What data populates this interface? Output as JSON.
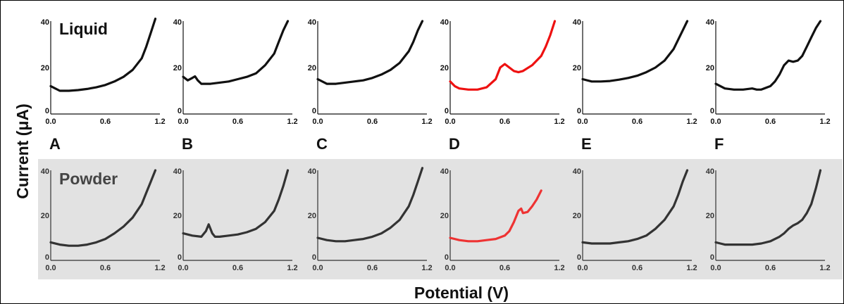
{
  "figure": {
    "ylabel": "Current (μA)",
    "xlabel": "Potential (V)",
    "row_labels": [
      "Liquid",
      "Powder"
    ],
    "panel_letters": [
      "A",
      "B",
      "C",
      "D",
      "E",
      "F"
    ]
  },
  "colors": {
    "normal": "#111111",
    "highlight": "#ee1111",
    "powder_band": "#e2e2e2"
  },
  "chart_data": [
    {
      "type": "line",
      "row": "Liquid",
      "col": "A",
      "xlim": [
        0,
        1.2
      ],
      "ylim": [
        0,
        40
      ],
      "xticks": [
        "0.0",
        "0.6",
        "1.2"
      ],
      "yticks": [
        "0",
        "20",
        "40"
      ],
      "color": "#111111",
      "x": [
        0,
        0.1,
        0.2,
        0.3,
        0.4,
        0.5,
        0.6,
        0.7,
        0.8,
        0.9,
        1.0,
        1.05,
        1.1,
        1.15
      ],
      "y": [
        12,
        10,
        10,
        10.3,
        10.8,
        11.5,
        12.5,
        14,
        16,
        19,
        24,
        29,
        35,
        41
      ]
    },
    {
      "type": "line",
      "row": "Liquid",
      "col": "B",
      "xlim": [
        0,
        1.2
      ],
      "ylim": [
        0,
        40
      ],
      "xticks": [
        "0.0",
        "0.6",
        "1.2"
      ],
      "yticks": [
        "0",
        "20",
        "40"
      ],
      "color": "#111111",
      "x": [
        0,
        0.05,
        0.1,
        0.13,
        0.16,
        0.2,
        0.3,
        0.4,
        0.5,
        0.6,
        0.7,
        0.8,
        0.9,
        1.0,
        1.05,
        1.1,
        1.15
      ],
      "y": [
        16,
        14.5,
        15.5,
        16.2,
        14.5,
        13,
        13,
        13.5,
        14,
        15,
        16,
        17.5,
        21,
        26,
        31,
        36,
        40
      ]
    },
    {
      "type": "line",
      "row": "Liquid",
      "col": "C",
      "xlim": [
        0,
        1.2
      ],
      "ylim": [
        0,
        40
      ],
      "xticks": [
        "0.0",
        "0.6",
        "1.2"
      ],
      "yticks": [
        "0",
        "20",
        "40"
      ],
      "color": "#111111",
      "x": [
        0,
        0.1,
        0.2,
        0.3,
        0.4,
        0.5,
        0.6,
        0.7,
        0.8,
        0.9,
        1.0,
        1.05,
        1.1,
        1.15
      ],
      "y": [
        15,
        13,
        13,
        13.5,
        14,
        14.5,
        15.5,
        17,
        19,
        22,
        27,
        31,
        36,
        40
      ]
    },
    {
      "type": "line",
      "row": "Liquid",
      "col": "D",
      "xlim": [
        0,
        1.2
      ],
      "ylim": [
        0,
        40
      ],
      "xticks": [
        "0.0",
        "0.6",
        "1.2"
      ],
      "yticks": [
        "0",
        "20",
        "40"
      ],
      "color": "#ee1111",
      "x": [
        0,
        0.05,
        0.1,
        0.2,
        0.3,
        0.4,
        0.5,
        0.55,
        0.6,
        0.65,
        0.7,
        0.75,
        0.8,
        0.9,
        1.0,
        1.05,
        1.1,
        1.15
      ],
      "y": [
        14,
        12,
        11,
        10.5,
        10.5,
        11.5,
        15,
        20,
        21.5,
        20,
        18.5,
        18,
        18.5,
        21,
        25,
        29,
        34,
        40
      ]
    },
    {
      "type": "line",
      "row": "Liquid",
      "col": "E",
      "xlim": [
        0,
        1.2
      ],
      "ylim": [
        0,
        40
      ],
      "xticks": [
        "0.0",
        "0.6",
        "1.2"
      ],
      "yticks": [
        "0",
        "20",
        "40"
      ],
      "color": "#111111",
      "x": [
        0,
        0.1,
        0.2,
        0.3,
        0.4,
        0.5,
        0.6,
        0.7,
        0.8,
        0.9,
        1.0,
        1.05,
        1.1,
        1.15
      ],
      "y": [
        15,
        14,
        14,
        14.2,
        14.8,
        15.5,
        16.5,
        18,
        20,
        23,
        28,
        32,
        36,
        40
      ]
    },
    {
      "type": "line",
      "row": "Liquid",
      "col": "F",
      "xlim": [
        0,
        1.2
      ],
      "ylim": [
        0,
        40
      ],
      "xticks": [
        "0.0",
        "0.6",
        "1.2"
      ],
      "yticks": [
        "0",
        "20",
        "40"
      ],
      "color": "#111111",
      "x": [
        0,
        0.1,
        0.2,
        0.3,
        0.4,
        0.45,
        0.5,
        0.6,
        0.65,
        0.7,
        0.75,
        0.8,
        0.85,
        0.9,
        0.95,
        1.0,
        1.05,
        1.1,
        1.15
      ],
      "y": [
        13,
        11,
        10.5,
        10.5,
        11,
        10.5,
        10.5,
        12,
        14,
        17,
        21,
        23,
        22.5,
        23,
        25,
        29,
        33,
        37,
        40
      ]
    },
    {
      "type": "line",
      "row": "Powder",
      "col": "A",
      "xlim": [
        0,
        1.2
      ],
      "ylim": [
        0,
        40
      ],
      "xticks": [
        "0.0",
        "0.6",
        "1.2"
      ],
      "yticks": [
        "0",
        "20",
        "40"
      ],
      "color": "#333333",
      "x": [
        0,
        0.1,
        0.2,
        0.3,
        0.4,
        0.5,
        0.6,
        0.7,
        0.8,
        0.9,
        1.0,
        1.05,
        1.1,
        1.15
      ],
      "y": [
        8,
        7,
        6.5,
        6.5,
        7,
        8,
        9.5,
        12,
        15,
        19,
        25,
        30,
        35,
        40
      ]
    },
    {
      "type": "line",
      "row": "Powder",
      "col": "B",
      "xlim": [
        0,
        1.2
      ],
      "ylim": [
        0,
        40
      ],
      "xticks": [
        "0.0",
        "0.6",
        "1.2"
      ],
      "yticks": [
        "0",
        "20",
        "40"
      ],
      "color": "#333333",
      "x": [
        0,
        0.1,
        0.2,
        0.25,
        0.28,
        0.32,
        0.35,
        0.4,
        0.5,
        0.6,
        0.7,
        0.8,
        0.9,
        1.0,
        1.05,
        1.1,
        1.15
      ],
      "y": [
        12,
        11,
        10.5,
        13,
        16,
        12,
        10.5,
        10.5,
        11,
        11.5,
        12.5,
        14,
        17,
        22,
        27,
        33,
        40
      ]
    },
    {
      "type": "line",
      "row": "Powder",
      "col": "C",
      "xlim": [
        0,
        1.2
      ],
      "ylim": [
        0,
        40
      ],
      "xticks": [
        "0.0",
        "0.6",
        "1.2"
      ],
      "yticks": [
        "0",
        "20",
        "40"
      ],
      "color": "#333333",
      "x": [
        0,
        0.1,
        0.2,
        0.3,
        0.4,
        0.5,
        0.6,
        0.7,
        0.8,
        0.9,
        1.0,
        1.05,
        1.1,
        1.15
      ],
      "y": [
        10,
        9,
        8.5,
        8.5,
        9,
        9.5,
        10.5,
        12,
        14.5,
        18,
        24,
        29,
        35,
        41
      ]
    },
    {
      "type": "line",
      "row": "Powder",
      "col": "D",
      "xlim": [
        0,
        1.2
      ],
      "ylim": [
        0,
        40
      ],
      "xticks": [
        "0.0",
        "0.6",
        "1.2"
      ],
      "yticks": [
        "0",
        "20",
        "40"
      ],
      "color": "#ee3333",
      "x": [
        0,
        0.1,
        0.2,
        0.3,
        0.4,
        0.5,
        0.6,
        0.65,
        0.7,
        0.75,
        0.78,
        0.8,
        0.85,
        0.9,
        0.95,
        1.0
      ],
      "y": [
        10,
        9,
        8.5,
        8.5,
        9,
        9.5,
        11,
        13,
        17,
        22,
        23,
        21,
        21.5,
        24,
        27,
        31
      ]
    },
    {
      "type": "line",
      "row": "Powder",
      "col": "E",
      "xlim": [
        0,
        1.2
      ],
      "ylim": [
        0,
        40
      ],
      "xticks": [
        "0.0",
        "0.6",
        "1.2"
      ],
      "yticks": [
        "0",
        "20",
        "40"
      ],
      "color": "#333333",
      "x": [
        0,
        0.1,
        0.2,
        0.3,
        0.4,
        0.5,
        0.6,
        0.7,
        0.8,
        0.9,
        1.0,
        1.05,
        1.1,
        1.15
      ],
      "y": [
        8,
        7.5,
        7.5,
        7.5,
        8,
        8.5,
        9.5,
        11,
        14,
        18,
        24,
        29,
        35,
        40
      ]
    },
    {
      "type": "line",
      "row": "Powder",
      "col": "F",
      "xlim": [
        0,
        1.2
      ],
      "ylim": [
        0,
        40
      ],
      "xticks": [
        "0.0",
        "0.6",
        "1.2"
      ],
      "yticks": [
        "0",
        "20",
        "40"
      ],
      "color": "#333333",
      "x": [
        0,
        0.05,
        0.1,
        0.2,
        0.3,
        0.4,
        0.5,
        0.6,
        0.7,
        0.75,
        0.8,
        0.85,
        0.9,
        0.95,
        1.0,
        1.05,
        1.1,
        1.15
      ],
      "y": [
        8,
        7.5,
        7,
        7,
        7,
        7,
        7.5,
        8.5,
        10.5,
        12,
        14,
        15.5,
        16.5,
        18,
        21,
        25,
        32,
        40
      ]
    }
  ]
}
